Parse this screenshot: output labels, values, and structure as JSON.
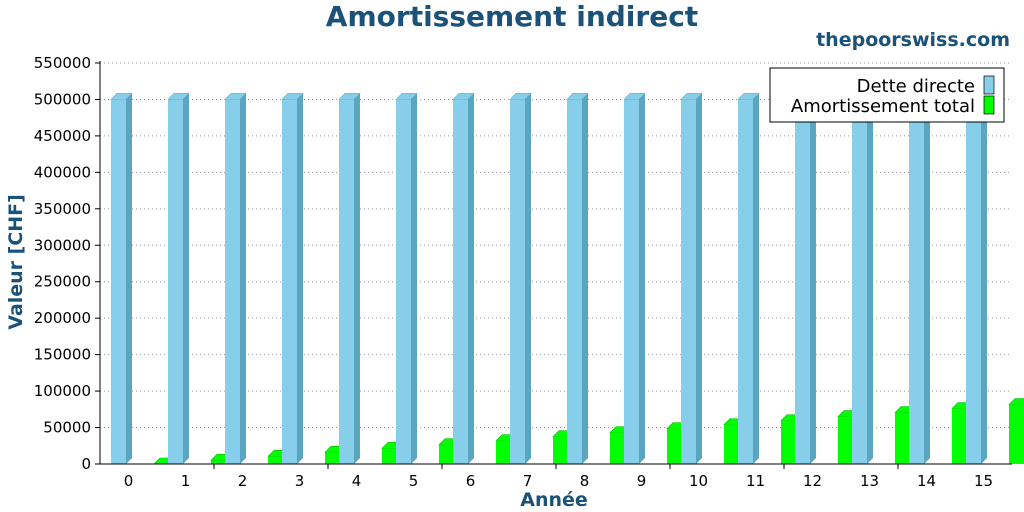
{
  "header": {
    "title": "Amortissement indirect",
    "brand": "thepoorswiss.com"
  },
  "colors": {
    "series_0_face": "#87ceeb",
    "series_0_side": "#5aa6c1",
    "series_1_face": "#00ff00",
    "series_1_side": "#00c000",
    "title": "#1a527a"
  },
  "chart_data": {
    "type": "bar",
    "title": "Amortissement indirect",
    "xlabel": "Année",
    "ylabel": "Valeur [CHF]",
    "ylim": [
      0,
      550000
    ],
    "y_ticks": [
      0,
      50000,
      100000,
      150000,
      200000,
      250000,
      300000,
      350000,
      400000,
      450000,
      500000,
      550000
    ],
    "grid": "horizontal dotted",
    "legend_position": "top-right",
    "categories": [
      "0",
      "1",
      "2",
      "3",
      "4",
      "5",
      "6",
      "7",
      "8",
      "9",
      "10",
      "11",
      "12",
      "13",
      "14",
      "15"
    ],
    "series": [
      {
        "name": "Dette directe",
        "values": [
          500000,
          500000,
          500000,
          500000,
          500000,
          500000,
          500000,
          500000,
          500000,
          500000,
          500000,
          500000,
          500000,
          500000,
          500000,
          500000
        ]
      },
      {
        "name": "Amortissement total",
        "values": [
          0,
          5000,
          10500,
          16000,
          21500,
          26500,
          32000,
          37500,
          43000,
          48500,
          54000,
          59500,
          65000,
          70500,
          76000,
          81500
        ]
      }
    ]
  }
}
